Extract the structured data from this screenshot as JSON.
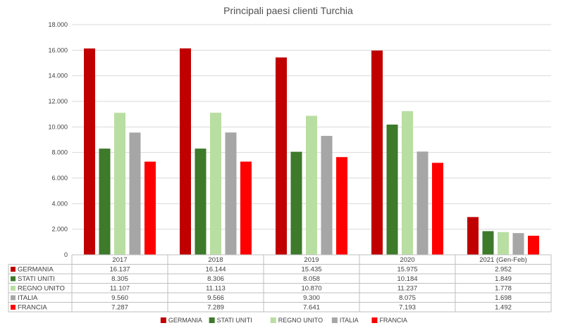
{
  "chart_data": {
    "type": "bar",
    "title": "Principali paesi clienti Turchia",
    "categories": [
      "2017",
      "2018",
      "2019",
      "2020",
      "2021 (Gen-Feb)"
    ],
    "ylim": [
      0,
      18000
    ],
    "yticks": [
      "0",
      "2.000",
      "4.000",
      "6.000",
      "8.000",
      "10.000",
      "12.000",
      "14.000",
      "16.000",
      "18.000"
    ],
    "ytick_values": [
      0,
      2000,
      4000,
      6000,
      8000,
      10000,
      12000,
      14000,
      16000,
      18000
    ],
    "grid": true,
    "legend_position": "bottom",
    "series": [
      {
        "name": "GERMANIA",
        "color": "#c00000",
        "values": [
          16137,
          16144,
          15435,
          15975,
          2952
        ],
        "labels": [
          "16.137",
          "16.144",
          "15.435",
          "15.975",
          "2.952"
        ]
      },
      {
        "name": "STATI UNITI",
        "color": "#3d7a2a",
        "values": [
          8305,
          8306,
          8058,
          10184,
          1849
        ],
        "labels": [
          "8.305",
          "8.306",
          "8.058",
          "10.184",
          "1.849"
        ]
      },
      {
        "name": "REGNO UNITO",
        "color": "#b9dea2",
        "values": [
          11107,
          11113,
          10870,
          11237,
          1778
        ],
        "labels": [
          "11.107",
          "11.113",
          "10.870",
          "11.237",
          "1.778"
        ]
      },
      {
        "name": "ITALIA",
        "color": "#a6a6a6",
        "values": [
          9560,
          9566,
          9300,
          8075,
          1698
        ],
        "labels": [
          "9.560",
          "9.566",
          "9.300",
          "8.075",
          "1.698"
        ]
      },
      {
        "name": "FRANCIA",
        "color": "#ff0000",
        "values": [
          7287,
          7289,
          7641,
          7193,
          1492
        ],
        "labels": [
          "7.287",
          "7.289",
          "7.641",
          "7.193",
          "1.492"
        ]
      }
    ]
  }
}
